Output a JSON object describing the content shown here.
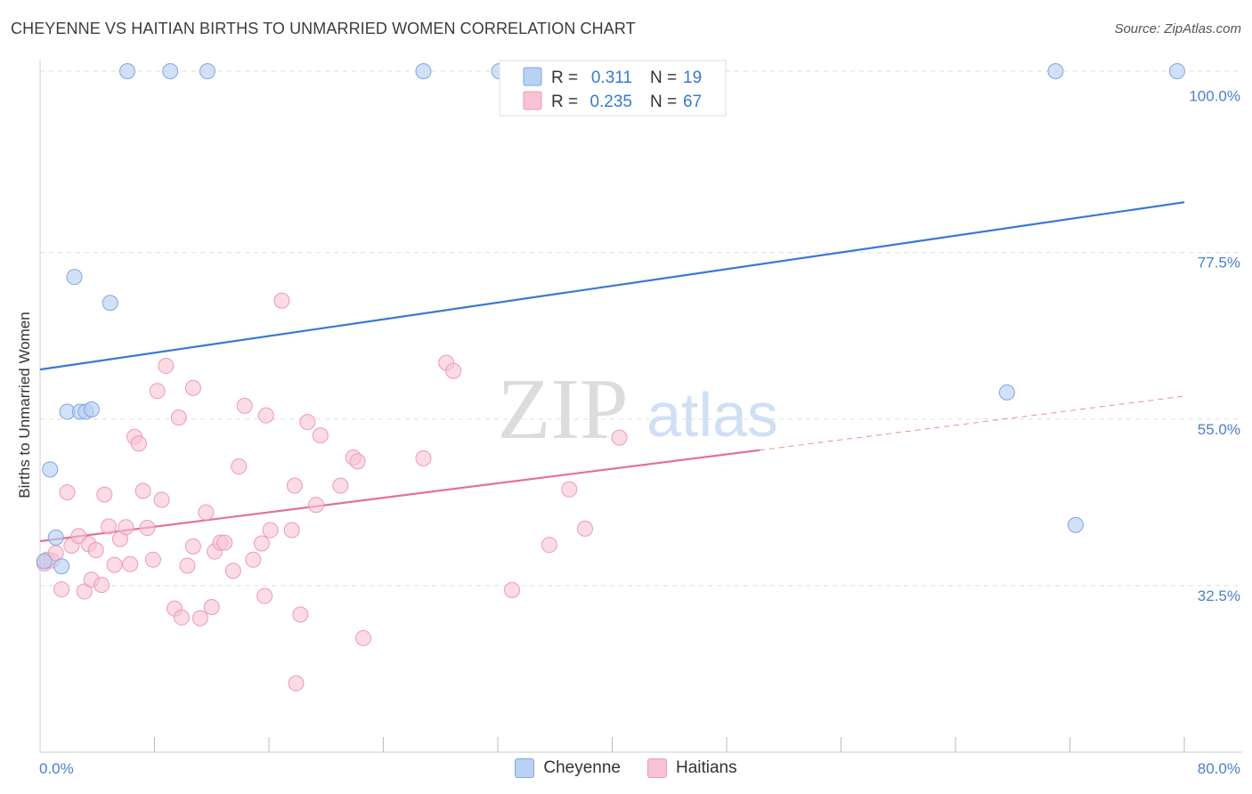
{
  "title": "CHEYENNE VS HAITIAN BIRTHS TO UNMARRIED WOMEN CORRELATION CHART",
  "source": "Source: ZipAtlas.com",
  "watermark": {
    "zip": "ZIP",
    "atlas": "atlas"
  },
  "colors": {
    "cheyenne_fill": "#b9d1f3",
    "cheyenne_stroke": "#7fa6e0",
    "cheyenne_line": "#3a78d4",
    "haitians_fill": "#f8c3d3",
    "haitians_stroke": "#ee9ab5",
    "haitians_line": "#e46f98",
    "tick_text": "#4a7fd0",
    "grid": "#dddddd"
  },
  "legend": {
    "r_label": "R =",
    "n_label": "N =",
    "rows": [
      {
        "r": "0.311",
        "n": "19"
      },
      {
        "r": "0.235",
        "n": "67"
      }
    ]
  },
  "bottom_legend": {
    "cheyenne": "Cheyenne",
    "haitians": "Haitians"
  },
  "chart_data": {
    "type": "scatter",
    "title": "CHEYENNE VS HAITIAN BIRTHS TO UNMARRIED WOMEN CORRELATION CHART",
    "xlabel": "",
    "ylabel": "Births to Unmarried Women",
    "xlim": [
      0,
      80
    ],
    "ylim": [
      10,
      103
    ],
    "x_tick_labels": [
      "0.0%",
      "80.0%"
    ],
    "y_ticks": [
      32.5,
      55.0,
      77.5,
      100.0
    ],
    "y_tick_labels": [
      "32.5%",
      "55.0%",
      "77.5%",
      "100.0%"
    ],
    "series": [
      {
        "name": "Cheyenne",
        "r": 0.311,
        "n": 19,
        "trend": {
          "x": [
            0,
            80
          ],
          "y": [
            61.7,
            84.3
          ],
          "dashed_to": null
        },
        "points": [
          [
            6.1,
            102.0
          ],
          [
            9.1,
            102.0
          ],
          [
            11.7,
            102.0
          ],
          [
            26.8,
            102.0
          ],
          [
            32.1,
            102.0
          ],
          [
            71.0,
            102.0
          ],
          [
            79.5,
            102.0
          ],
          [
            2.4,
            74.2
          ],
          [
            4.9,
            70.7
          ],
          [
            1.9,
            56.0
          ],
          [
            2.8,
            56.0
          ],
          [
            3.2,
            56.0
          ],
          [
            3.6,
            56.3
          ],
          [
            0.7,
            48.2
          ],
          [
            1.1,
            39.0
          ],
          [
            1.5,
            35.1
          ],
          [
            0.3,
            35.8
          ],
          [
            67.6,
            58.6
          ],
          [
            72.4,
            40.7
          ]
        ]
      },
      {
        "name": "Haitians",
        "r": 0.235,
        "n": 67,
        "trend": {
          "x": [
            0,
            50.3
          ],
          "y": [
            38.5,
            50.8
          ],
          "dashed_to": [
            80,
            58.1
          ]
        },
        "points": [
          [
            0.3,
            35.5
          ],
          [
            0.5,
            36.0
          ],
          [
            0.8,
            35.9
          ],
          [
            1.1,
            36.9
          ],
          [
            1.5,
            32.0
          ],
          [
            1.9,
            45.1
          ],
          [
            2.2,
            37.9
          ],
          [
            2.7,
            39.2
          ],
          [
            3.1,
            31.7
          ],
          [
            3.4,
            38.1
          ],
          [
            3.6,
            33.3
          ],
          [
            3.9,
            37.3
          ],
          [
            4.3,
            32.6
          ],
          [
            4.5,
            44.8
          ],
          [
            4.8,
            40.5
          ],
          [
            5.2,
            35.3
          ],
          [
            5.6,
            38.8
          ],
          [
            6.0,
            40.4
          ],
          [
            6.3,
            35.4
          ],
          [
            6.6,
            52.6
          ],
          [
            6.9,
            51.7
          ],
          [
            7.2,
            45.3
          ],
          [
            7.5,
            40.3
          ],
          [
            7.9,
            36.0
          ],
          [
            8.2,
            58.8
          ],
          [
            8.5,
            44.1
          ],
          [
            8.8,
            62.2
          ],
          [
            9.4,
            29.4
          ],
          [
            9.7,
            55.2
          ],
          [
            9.9,
            28.2
          ],
          [
            10.3,
            35.2
          ],
          [
            10.7,
            37.8
          ],
          [
            10.7,
            59.2
          ],
          [
            11.2,
            28.1
          ],
          [
            11.6,
            42.4
          ],
          [
            12.0,
            29.6
          ],
          [
            12.2,
            37.1
          ],
          [
            12.6,
            38.3
          ],
          [
            12.9,
            38.3
          ],
          [
            13.5,
            34.5
          ],
          [
            13.9,
            48.6
          ],
          [
            14.3,
            56.8
          ],
          [
            14.9,
            36.0
          ],
          [
            15.5,
            38.2
          ],
          [
            15.7,
            31.1
          ],
          [
            15.8,
            55.5
          ],
          [
            16.1,
            40.0
          ],
          [
            16.9,
            71.0
          ],
          [
            17.6,
            40.0
          ],
          [
            17.8,
            46.0
          ],
          [
            17.9,
            19.3
          ],
          [
            18.2,
            28.6
          ],
          [
            18.7,
            54.6
          ],
          [
            19.3,
            43.4
          ],
          [
            19.6,
            52.8
          ],
          [
            21.0,
            46.0
          ],
          [
            21.9,
            49.8
          ],
          [
            22.2,
            49.3
          ],
          [
            22.6,
            25.4
          ],
          [
            26.8,
            49.7
          ],
          [
            28.4,
            62.6
          ],
          [
            28.9,
            61.5
          ],
          [
            33.0,
            31.9
          ],
          [
            35.6,
            38.0
          ],
          [
            37.0,
            45.5
          ],
          [
            38.1,
            40.2
          ],
          [
            40.5,
            52.5
          ]
        ]
      }
    ]
  }
}
